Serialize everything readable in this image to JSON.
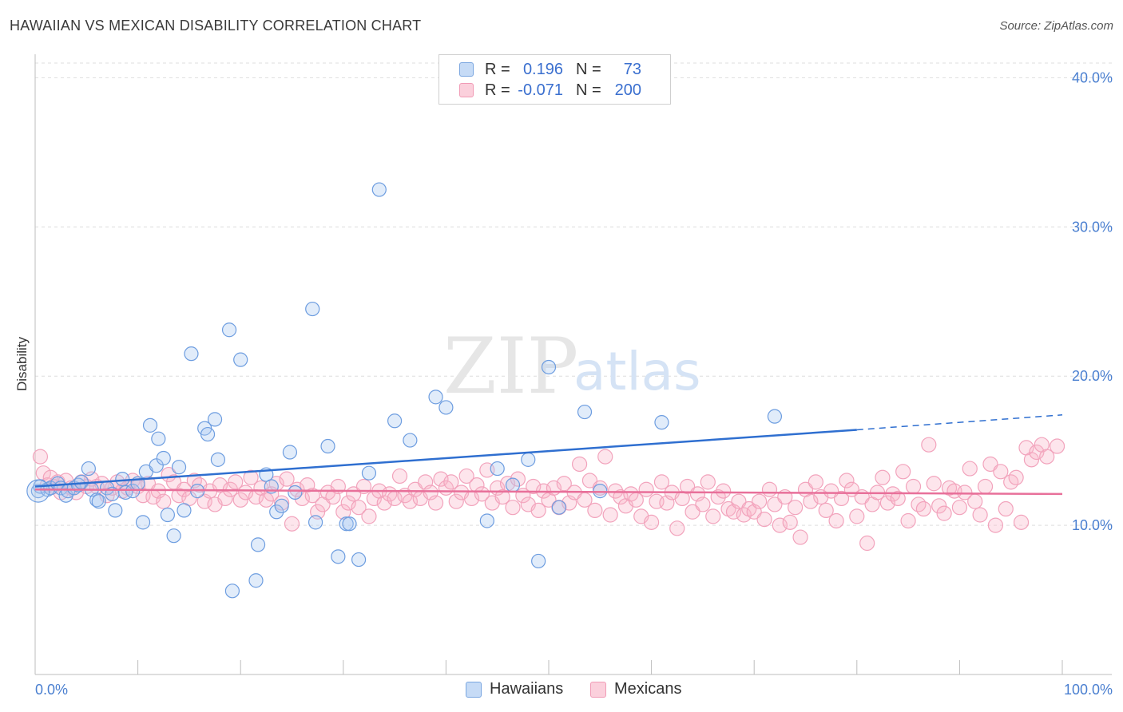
{
  "header": {
    "title": "HAWAIIAN VS MEXICAN DISABILITY CORRELATION CHART",
    "source": "Source: ZipAtlas.com"
  },
  "legend": {
    "rows": [
      {
        "r_label": "R =",
        "r_value": "0.196",
        "n_label": "N =",
        "n_value": "73",
        "color": "#a8c8f0"
      },
      {
        "r_label": "R =",
        "r_value": "-0.071",
        "n_label": "N =",
        "n_value": "200",
        "color": "#f8b8cc"
      }
    ]
  },
  "bottom_legend": {
    "hawaiians": "Hawaiians",
    "mexicans": "Mexicans"
  },
  "watermark": {
    "zip": "ZIP",
    "atlas": "atlas"
  },
  "chart_data": {
    "type": "scatter",
    "ylabel": "Disability",
    "xlabel": "",
    "xlim": [
      0,
      100
    ],
    "ylim": [
      0,
      42
    ],
    "x_tick_labels": [
      "0.0%",
      "100.0%"
    ],
    "y_ticks": [
      10,
      20,
      30,
      40
    ],
    "y_tick_labels": [
      "10.0%",
      "20.0%",
      "30.0%",
      "40.0%"
    ],
    "grid": true,
    "colors": {
      "hawaiians": "#5b8fd8",
      "hawaiians_line": "#2f6fd0",
      "mexicans": "#f090b0",
      "mexicans_line": "#e8709a"
    },
    "series": [
      {
        "name": "Hawaiians",
        "trend": {
          "x0": 0,
          "y0": 12.6,
          "x1": 80,
          "y1": 16.4,
          "dashed_to_x": 100,
          "dashed_to_y": 17.4
        },
        "points": [
          [
            0.3,
            12.3
          ],
          [
            0.5,
            12.6
          ],
          [
            1.2,
            12.4
          ],
          [
            1.5,
            12.5
          ],
          [
            2.2,
            12.8
          ],
          [
            2.5,
            12.5
          ],
          [
            3,
            12.0
          ],
          [
            3.2,
            12.3
          ],
          [
            3.8,
            12.5
          ],
          [
            4.2,
            12.7
          ],
          [
            4.5,
            12.9
          ],
          [
            5.2,
            13.8
          ],
          [
            5.5,
            12.4
          ],
          [
            6.0,
            11.7
          ],
          [
            6.2,
            11.6
          ],
          [
            7,
            12.5
          ],
          [
            7.5,
            12.1
          ],
          [
            7.8,
            11.0
          ],
          [
            8.5,
            13.1
          ],
          [
            8.8,
            12.2
          ],
          [
            9.5,
            12.3
          ],
          [
            10,
            12.8
          ],
          [
            10.5,
            10.2
          ],
          [
            10.8,
            13.6
          ],
          [
            11.2,
            16.7
          ],
          [
            11.8,
            14.0
          ],
          [
            12.0,
            15.8
          ],
          [
            12.5,
            14.5
          ],
          [
            12.9,
            10.7
          ],
          [
            13.5,
            9.3
          ],
          [
            14,
            13.9
          ],
          [
            14.5,
            11.0
          ],
          [
            15.2,
            21.5
          ],
          [
            15.8,
            12.3
          ],
          [
            16.5,
            16.5
          ],
          [
            16.8,
            16.1
          ],
          [
            17.5,
            17.1
          ],
          [
            17.8,
            14.4
          ],
          [
            18.9,
            23.1
          ],
          [
            19.2,
            5.6
          ],
          [
            20.0,
            21.1
          ],
          [
            21.5,
            6.3
          ],
          [
            21.7,
            8.7
          ],
          [
            22.5,
            13.4
          ],
          [
            23.0,
            12.6
          ],
          [
            23.5,
            10.9
          ],
          [
            24.0,
            11.3
          ],
          [
            24.8,
            14.9
          ],
          [
            25.3,
            12.2
          ],
          [
            27.0,
            24.5
          ],
          [
            27.3,
            10.2
          ],
          [
            28.5,
            15.3
          ],
          [
            29.5,
            7.9
          ],
          [
            30.3,
            10.1
          ],
          [
            30.6,
            10.1
          ],
          [
            31.5,
            7.7
          ],
          [
            32.5,
            13.5
          ],
          [
            33.5,
            32.5
          ],
          [
            35.0,
            17.0
          ],
          [
            36.5,
            15.7
          ],
          [
            39.0,
            18.6
          ],
          [
            40.0,
            17.9
          ],
          [
            44.0,
            10.3
          ],
          [
            45.0,
            13.8
          ],
          [
            46.5,
            12.7
          ],
          [
            48.0,
            14.4
          ],
          [
            49.0,
            7.6
          ],
          [
            50,
            20.6
          ],
          [
            51,
            11.2
          ],
          [
            53.5,
            17.6
          ],
          [
            55,
            12.3
          ],
          [
            61,
            16.9
          ],
          [
            72,
            17.3
          ]
        ]
      },
      {
        "name": "Mexicans",
        "trend": {
          "x0": 0,
          "y0": 12.4,
          "x1": 100,
          "y1": 12.1
        },
        "points": [
          [
            0.5,
            14.6
          ],
          [
            0.8,
            13.5
          ],
          [
            1.2,
            12.7
          ],
          [
            1.5,
            13.2
          ],
          [
            1.8,
            12.6
          ],
          [
            2.2,
            12.9
          ],
          [
            2.5,
            12.2
          ],
          [
            3,
            13.0
          ],
          [
            3.5,
            12.5
          ],
          [
            4,
            12.2
          ],
          [
            4.5,
            12.9
          ],
          [
            5,
            12.6
          ],
          [
            5.5,
            13.1
          ],
          [
            6,
            12.6
          ],
          [
            6.5,
            12.8
          ],
          [
            7,
            12.0
          ],
          [
            7.5,
            12.5
          ],
          [
            8,
            12.9
          ],
          [
            8.5,
            12.3
          ],
          [
            9,
            12.5
          ],
          [
            9.5,
            13.0
          ],
          [
            10,
            12.6
          ],
          [
            10.5,
            12.0
          ],
          [
            11,
            12.8
          ],
          [
            11.5,
            11.9
          ],
          [
            12,
            12.3
          ],
          [
            12.5,
            11.6
          ],
          [
            13,
            13.4
          ],
          [
            13.5,
            12.9
          ],
          [
            14,
            12.0
          ],
          [
            14.5,
            12.4
          ],
          [
            15,
            11.8
          ],
          [
            15.5,
            13.0
          ],
          [
            16,
            12.7
          ],
          [
            16.5,
            11.6
          ],
          [
            17,
            12.3
          ],
          [
            17.5,
            11.4
          ],
          [
            18,
            12.7
          ],
          [
            18.5,
            11.8
          ],
          [
            19,
            12.4
          ],
          [
            19.5,
            12.9
          ],
          [
            20,
            11.7
          ],
          [
            20.5,
            12.2
          ],
          [
            21,
            13.2
          ],
          [
            21.5,
            11.9
          ],
          [
            22,
            12.5
          ],
          [
            22.5,
            11.7
          ],
          [
            23,
            12.1
          ],
          [
            23.5,
            12.8
          ],
          [
            24,
            11.5
          ],
          [
            24.5,
            13.1
          ],
          [
            25,
            10.1
          ],
          [
            25.5,
            12.4
          ],
          [
            26,
            11.8
          ],
          [
            26.5,
            12.7
          ],
          [
            27,
            12.0
          ],
          [
            27.5,
            10.9
          ],
          [
            28,
            11.4
          ],
          [
            28.5,
            12.2
          ],
          [
            29,
            11.9
          ],
          [
            29.5,
            12.6
          ],
          [
            30,
            10.9
          ],
          [
            30.5,
            11.5
          ],
          [
            31,
            12.1
          ],
          [
            31.5,
            11.2
          ],
          [
            32,
            12.6
          ],
          [
            32.5,
            10.6
          ],
          [
            33,
            11.8
          ],
          [
            33.5,
            12.3
          ],
          [
            34,
            11.5
          ],
          [
            34.5,
            12.1
          ],
          [
            35,
            11.8
          ],
          [
            35.5,
            13.3
          ],
          [
            36,
            12.0
          ],
          [
            36.5,
            11.6
          ],
          [
            37,
            12.4
          ],
          [
            37.5,
            11.8
          ],
          [
            38,
            12.9
          ],
          [
            38.5,
            12.2
          ],
          [
            39,
            11.5
          ],
          [
            39.5,
            13.1
          ],
          [
            40,
            12.5
          ],
          [
            40.5,
            12.9
          ],
          [
            41,
            11.6
          ],
          [
            41.5,
            12.2
          ],
          [
            42,
            13.3
          ],
          [
            42.5,
            11.8
          ],
          [
            43,
            12.7
          ],
          [
            43.5,
            12.1
          ],
          [
            44,
            13.7
          ],
          [
            44.5,
            11.5
          ],
          [
            45,
            12.5
          ],
          [
            45.5,
            11.9
          ],
          [
            46,
            12.8
          ],
          [
            46.5,
            11.2
          ],
          [
            47,
            13.1
          ],
          [
            47.5,
            12.0
          ],
          [
            48,
            11.4
          ],
          [
            48.5,
            12.6
          ],
          [
            49,
            11.0
          ],
          [
            49.5,
            12.3
          ],
          [
            50,
            11.7
          ],
          [
            50.5,
            12.5
          ],
          [
            51,
            11.2
          ],
          [
            51.5,
            12.8
          ],
          [
            52,
            11.5
          ],
          [
            52.5,
            12.2
          ],
          [
            53,
            14.1
          ],
          [
            53.5,
            11.7
          ],
          [
            54,
            13.0
          ],
          [
            54.5,
            11.0
          ],
          [
            55,
            12.5
          ],
          [
            55.5,
            14.6
          ],
          [
            56,
            10.7
          ],
          [
            56.5,
            12.3
          ],
          [
            57,
            11.9
          ],
          [
            57.5,
            11.3
          ],
          [
            58,
            12.1
          ],
          [
            58.5,
            11.7
          ],
          [
            59,
            10.6
          ],
          [
            59.5,
            12.4
          ],
          [
            60,
            10.2
          ],
          [
            60.5,
            11.6
          ],
          [
            61,
            12.9
          ],
          [
            61.5,
            11.5
          ],
          [
            62,
            12.2
          ],
          [
            62.5,
            9.8
          ],
          [
            63,
            11.8
          ],
          [
            63.5,
            12.6
          ],
          [
            64,
            10.9
          ],
          [
            64.5,
            12.1
          ],
          [
            65,
            11.4
          ],
          [
            65.5,
            12.9
          ],
          [
            66,
            10.6
          ],
          [
            66.5,
            11.9
          ],
          [
            67,
            12.3
          ],
          [
            67.5,
            11.1
          ],
          [
            68,
            10.9
          ],
          [
            68.5,
            11.6
          ],
          [
            69,
            10.7
          ],
          [
            69.5,
            11.1
          ],
          [
            70,
            10.9
          ],
          [
            70.5,
            11.6
          ],
          [
            71,
            10.4
          ],
          [
            71.5,
            12.4
          ],
          [
            72,
            11.4
          ],
          [
            72.5,
            10.0
          ],
          [
            73,
            11.9
          ],
          [
            73.5,
            10.2
          ],
          [
            74,
            11.2
          ],
          [
            74.5,
            9.2
          ],
          [
            75,
            12.4
          ],
          [
            75.5,
            11.6
          ],
          [
            76,
            12.9
          ],
          [
            76.5,
            11.9
          ],
          [
            77,
            11.0
          ],
          [
            77.5,
            12.3
          ],
          [
            78,
            10.3
          ],
          [
            78.5,
            11.8
          ],
          [
            79,
            13.0
          ],
          [
            79.5,
            12.4
          ],
          [
            80,
            10.6
          ],
          [
            80.5,
            11.9
          ],
          [
            81,
            8.8
          ],
          [
            81.5,
            11.4
          ],
          [
            82,
            12.2
          ],
          [
            82.5,
            13.2
          ],
          [
            83,
            11.5
          ],
          [
            83.5,
            12.1
          ],
          [
            84,
            11.8
          ],
          [
            84.5,
            13.6
          ],
          [
            85,
            10.3
          ],
          [
            85.5,
            12.6
          ],
          [
            86,
            11.4
          ],
          [
            86.5,
            11.1
          ],
          [
            87,
            15.4
          ],
          [
            87.5,
            12.8
          ],
          [
            88,
            11.3
          ],
          [
            88.5,
            10.8
          ],
          [
            89,
            12.5
          ],
          [
            89.5,
            12.3
          ],
          [
            90,
            11.2
          ],
          [
            90.5,
            12.2
          ],
          [
            91,
            13.8
          ],
          [
            91.5,
            11.6
          ],
          [
            92,
            10.7
          ],
          [
            92.5,
            12.6
          ],
          [
            93,
            14.1
          ],
          [
            93.5,
            10.0
          ],
          [
            94,
            13.6
          ],
          [
            94.5,
            11.1
          ],
          [
            95,
            12.9
          ],
          [
            95.5,
            13.2
          ],
          [
            96,
            10.2
          ],
          [
            96.5,
            15.2
          ],
          [
            97,
            14.4
          ],
          [
            97.5,
            14.9
          ],
          [
            98,
            15.4
          ],
          [
            98.5,
            14.6
          ],
          [
            99.5,
            15.3
          ]
        ]
      }
    ]
  }
}
